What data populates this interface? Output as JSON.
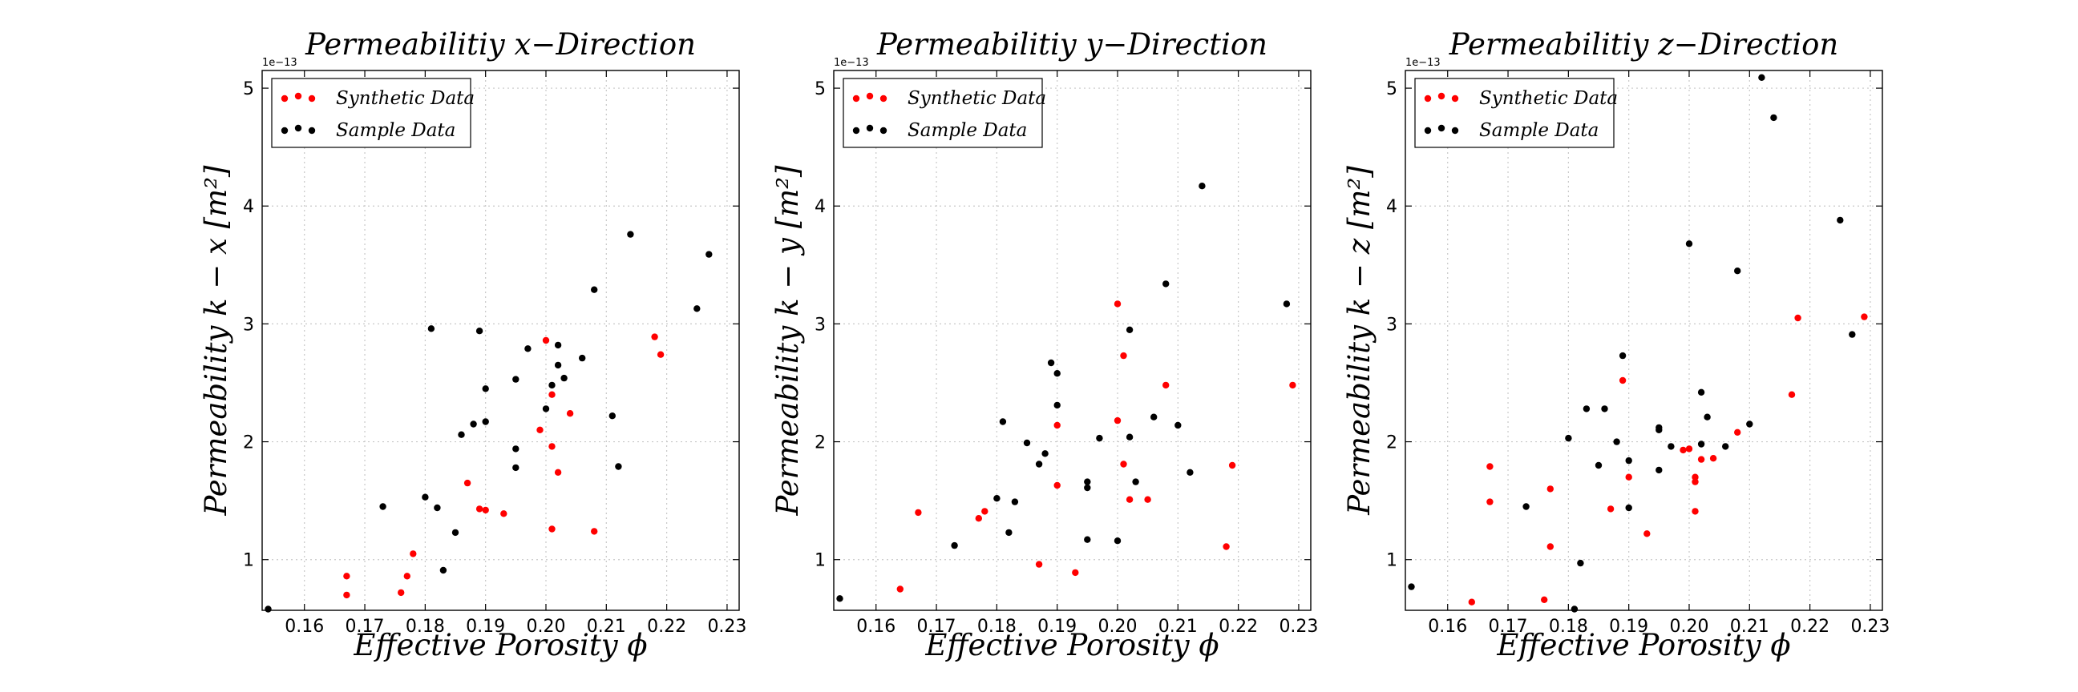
{
  "chart_data": [
    {
      "type": "scatter",
      "title": "Permeabilitiy x−Direction",
      "xlabel": "Effective Porosity ϕ",
      "ylabel": "Permeability k − x [m²]",
      "y_multiplier": "1e−13",
      "xlim": [
        0.153,
        0.232
      ],
      "ylim": [
        0.57,
        5.15
      ],
      "xticks": [
        "0.16",
        "0.17",
        "0.18",
        "0.19",
        "0.20",
        "0.21",
        "0.22",
        "0.23"
      ],
      "yticks": [
        "1",
        "2",
        "3",
        "4",
        "5"
      ],
      "grid": true,
      "legend_position": "top-left",
      "series": [
        {
          "name": "Synthetic Data",
          "color": "#ff0000",
          "points": [
            [
              0.167,
              0.86
            ],
            [
              0.167,
              0.7
            ],
            [
              0.176,
              0.72
            ],
            [
              0.177,
              0.86
            ],
            [
              0.178,
              1.05
            ],
            [
              0.187,
              1.65
            ],
            [
              0.189,
              1.43
            ],
            [
              0.19,
              1.42
            ],
            [
              0.193,
              1.39
            ],
            [
              0.199,
              2.1
            ],
            [
              0.2,
              2.86
            ],
            [
              0.201,
              2.4
            ],
            [
              0.201,
              1.96
            ],
            [
              0.201,
              1.26
            ],
            [
              0.202,
              1.74
            ],
            [
              0.204,
              2.24
            ],
            [
              0.208,
              1.24
            ],
            [
              0.218,
              2.89
            ],
            [
              0.219,
              2.74
            ]
          ]
        },
        {
          "name": "Sample Data",
          "color": "#000000",
          "points": [
            [
              0.154,
              0.58
            ],
            [
              0.173,
              1.45
            ],
            [
              0.18,
              1.53
            ],
            [
              0.181,
              2.96
            ],
            [
              0.182,
              1.44
            ],
            [
              0.183,
              0.91
            ],
            [
              0.185,
              1.23
            ],
            [
              0.186,
              2.06
            ],
            [
              0.188,
              2.15
            ],
            [
              0.189,
              2.94
            ],
            [
              0.19,
              2.45
            ],
            [
              0.19,
              2.17
            ],
            [
              0.195,
              1.78
            ],
            [
              0.195,
              1.94
            ],
            [
              0.195,
              2.53
            ],
            [
              0.197,
              2.79
            ],
            [
              0.2,
              2.28
            ],
            [
              0.201,
              2.48
            ],
            [
              0.202,
              2.82
            ],
            [
              0.202,
              2.65
            ],
            [
              0.203,
              2.54
            ],
            [
              0.206,
              2.71
            ],
            [
              0.208,
              3.29
            ],
            [
              0.211,
              2.22
            ],
            [
              0.212,
              1.79
            ],
            [
              0.214,
              3.76
            ],
            [
              0.225,
              3.13
            ],
            [
              0.227,
              3.59
            ]
          ]
        }
      ]
    },
    {
      "type": "scatter",
      "title": "Permeabilitiy y−Direction",
      "xlabel": "Effective Porosity ϕ",
      "ylabel": "Permeability k − y [m²]",
      "y_multiplier": "1e−13",
      "xlim": [
        0.153,
        0.232
      ],
      "ylim": [
        0.57,
        5.15
      ],
      "xticks": [
        "0.16",
        "0.17",
        "0.18",
        "0.19",
        "0.20",
        "0.21",
        "0.22",
        "0.23"
      ],
      "yticks": [
        "1",
        "2",
        "3",
        "4",
        "5"
      ],
      "grid": true,
      "legend_position": "top-left",
      "series": [
        {
          "name": "Synthetic Data",
          "color": "#ff0000",
          "points": [
            [
              0.164,
              0.75
            ],
            [
              0.167,
              1.4
            ],
            [
              0.177,
              1.35
            ],
            [
              0.178,
              1.41
            ],
            [
              0.187,
              0.96
            ],
            [
              0.19,
              1.63
            ],
            [
              0.19,
              2.14
            ],
            [
              0.193,
              0.89
            ],
            [
              0.2,
              3.17
            ],
            [
              0.2,
              2.18
            ],
            [
              0.201,
              2.73
            ],
            [
              0.201,
              1.81
            ],
            [
              0.202,
              1.51
            ],
            [
              0.205,
              1.51
            ],
            [
              0.208,
              2.48
            ],
            [
              0.218,
              1.11
            ],
            [
              0.219,
              1.8
            ],
            [
              0.229,
              2.48
            ]
          ]
        },
        {
          "name": "Sample Data",
          "color": "#000000",
          "points": [
            [
              0.154,
              0.67
            ],
            [
              0.173,
              1.12
            ],
            [
              0.18,
              1.52
            ],
            [
              0.181,
              2.17
            ],
            [
              0.182,
              1.23
            ],
            [
              0.183,
              1.49
            ],
            [
              0.185,
              1.99
            ],
            [
              0.187,
              1.81
            ],
            [
              0.188,
              1.9
            ],
            [
              0.189,
              2.67
            ],
            [
              0.19,
              2.58
            ],
            [
              0.19,
              2.31
            ],
            [
              0.195,
              1.61
            ],
            [
              0.195,
              1.66
            ],
            [
              0.195,
              1.17
            ],
            [
              0.197,
              2.03
            ],
            [
              0.2,
              1.16
            ],
            [
              0.202,
              2.95
            ],
            [
              0.202,
              2.04
            ],
            [
              0.203,
              1.66
            ],
            [
              0.206,
              2.21
            ],
            [
              0.208,
              3.34
            ],
            [
              0.21,
              2.14
            ],
            [
              0.212,
              1.74
            ],
            [
              0.214,
              4.17
            ],
            [
              0.228,
              3.17
            ]
          ]
        }
      ]
    },
    {
      "type": "scatter",
      "title": "Permeabilitiy z−Direction",
      "xlabel": "Effective Porosity ϕ",
      "ylabel": "Permeability k − z [m²]",
      "y_multiplier": "1e−13",
      "xlim": [
        0.153,
        0.232
      ],
      "ylim": [
        0.57,
        5.15
      ],
      "xticks": [
        "0.16",
        "0.17",
        "0.18",
        "0.19",
        "0.20",
        "0.21",
        "0.22",
        "0.23"
      ],
      "yticks": [
        "1",
        "2",
        "3",
        "4",
        "5"
      ],
      "grid": true,
      "legend_position": "top-left",
      "series": [
        {
          "name": "Synthetic Data",
          "color": "#ff0000",
          "points": [
            [
              0.164,
              0.64
            ],
            [
              0.167,
              1.79
            ],
            [
              0.167,
              1.49
            ],
            [
              0.176,
              0.66
            ],
            [
              0.177,
              1.6
            ],
            [
              0.177,
              1.11
            ],
            [
              0.187,
              1.43
            ],
            [
              0.189,
              2.52
            ],
            [
              0.19,
              1.7
            ],
            [
              0.193,
              1.22
            ],
            [
              0.199,
              1.93
            ],
            [
              0.2,
              1.94
            ],
            [
              0.201,
              1.7
            ],
            [
              0.201,
              1.66
            ],
            [
              0.201,
              1.41
            ],
            [
              0.202,
              1.85
            ],
            [
              0.204,
              1.86
            ],
            [
              0.208,
              2.08
            ],
            [
              0.217,
              2.4
            ],
            [
              0.218,
              3.05
            ],
            [
              0.229,
              3.06
            ]
          ]
        },
        {
          "name": "Sample Data",
          "color": "#000000",
          "points": [
            [
              0.154,
              0.77
            ],
            [
              0.173,
              1.45
            ],
            [
              0.18,
              2.03
            ],
            [
              0.181,
              0.58
            ],
            [
              0.182,
              0.97
            ],
            [
              0.183,
              2.28
            ],
            [
              0.185,
              1.8
            ],
            [
              0.186,
              2.28
            ],
            [
              0.188,
              2.0
            ],
            [
              0.189,
              2.73
            ],
            [
              0.19,
              1.84
            ],
            [
              0.19,
              1.44
            ],
            [
              0.195,
              2.1
            ],
            [
              0.195,
              1.76
            ],
            [
              0.195,
              2.12
            ],
            [
              0.197,
              1.96
            ],
            [
              0.2,
              3.68
            ],
            [
              0.202,
              1.98
            ],
            [
              0.202,
              2.42
            ],
            [
              0.203,
              2.21
            ],
            [
              0.206,
              1.96
            ],
            [
              0.208,
              3.45
            ],
            [
              0.21,
              2.15
            ],
            [
              0.212,
              5.09
            ],
            [
              0.214,
              4.75
            ],
            [
              0.225,
              3.88
            ],
            [
              0.227,
              2.91
            ]
          ]
        }
      ]
    }
  ]
}
